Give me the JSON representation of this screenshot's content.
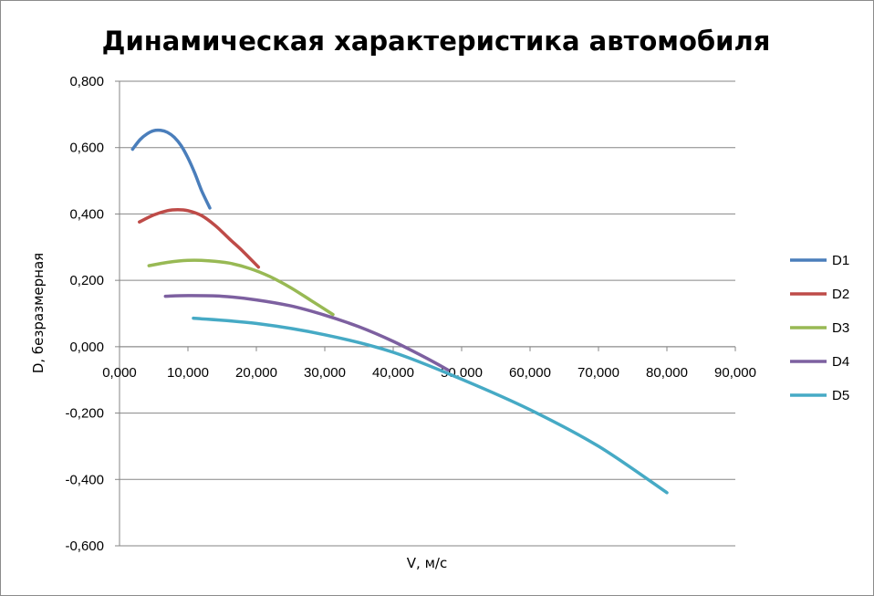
{
  "chart_data": {
    "type": "line",
    "title": "Динамическая характеристика автомобиля",
    "xlabel": "V, м/с",
    "ylabel": "D, безразмерная",
    "xlim": [
      0,
      90
    ],
    "ylim": [
      -0.6,
      0.8
    ],
    "xticks": [
      0,
      10,
      20,
      30,
      40,
      50,
      60,
      70,
      80,
      90
    ],
    "xtick_labels": [
      "0,000",
      "10,000",
      "20,000",
      "30,000",
      "40,000",
      "50,000",
      "60,000",
      "70,000",
      "80,000",
      "90,000"
    ],
    "yticks": [
      -0.6,
      -0.4,
      -0.2,
      0,
      0.2,
      0.4,
      0.6,
      0.8
    ],
    "ytick_labels": [
      "-0,600",
      "-0,400",
      "-0,200",
      "0,000",
      "0,200",
      "0,400",
      "0,600",
      "0,800"
    ],
    "grid": "horizontal",
    "legend": "right",
    "series": [
      {
        "name": "D1",
        "color": "#4a7ebb",
        "x": [
          1.9,
          3.0,
          4.0,
          5.0,
          6.0,
          7.0,
          8.0,
          9.0,
          10.0,
          11.0,
          12.0,
          13.2
        ],
        "y": [
          0.595,
          0.624,
          0.641,
          0.651,
          0.652,
          0.646,
          0.631,
          0.606,
          0.569,
          0.523,
          0.47,
          0.418
        ]
      },
      {
        "name": "D2",
        "color": "#be4b48",
        "x": [
          2.9,
          5.0,
          7.0,
          8.5,
          10.0,
          12.0,
          14.0,
          16.0,
          18.0,
          20.3
        ],
        "y": [
          0.376,
          0.397,
          0.41,
          0.413,
          0.41,
          0.395,
          0.365,
          0.326,
          0.288,
          0.24
        ]
      },
      {
        "name": "D3",
        "color": "#98b954",
        "x": [
          4.3,
          7.0,
          10.0,
          13.0,
          16.0,
          19.0,
          22.0,
          25.0,
          28.0,
          31.2
        ],
        "y": [
          0.244,
          0.254,
          0.26,
          0.259,
          0.252,
          0.236,
          0.211,
          0.178,
          0.139,
          0.097
        ]
      },
      {
        "name": "D4",
        "color": "#7d60a0",
        "x": [
          6.7,
          10.0,
          15.0,
          20.0,
          25.0,
          30.0,
          35.0,
          40.0,
          45.0,
          48.0
        ],
        "y": [
          0.152,
          0.154,
          0.152,
          0.141,
          0.123,
          0.095,
          0.06,
          0.016,
          -0.036,
          -0.07
        ]
      },
      {
        "name": "D5",
        "color": "#46aac5",
        "x": [
          10.8,
          20.0,
          30.0,
          40.0,
          50.0,
          60.0,
          70.0,
          80.0
        ],
        "y": [
          0.086,
          0.07,
          0.036,
          -0.017,
          -0.098,
          -0.19,
          -0.3,
          -0.44
        ]
      }
    ]
  }
}
